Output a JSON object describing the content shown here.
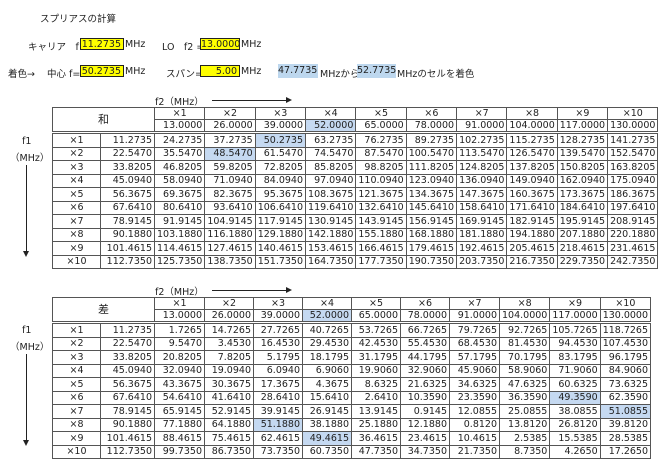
{
  "title": "スプリアスの計算",
  "carrier": {
    "label": "キャリア　f1 =",
    "value": "11.2735",
    "unit": "MHz"
  },
  "lo": {
    "label": "LO　f2 =",
    "value": "13.0000",
    "unit": "MHz"
  },
  "coloring": {
    "prefix": "着色→",
    "center_label": "中心 f=",
    "center_value": "50.2735",
    "center_unit": "MHz",
    "span_label": "スパン=",
    "span_value": "5.00",
    "span_unit": "MHz",
    "from_value": "47.7735",
    "from_text": "MHzから",
    "to_value": "52.7735",
    "to_text": "MHzのセルを着色"
  },
  "colors": {
    "input_bg": "#ffff00",
    "highlight": "#c5d9f1"
  },
  "axis": {
    "f2": "f2（MHz）",
    "f1": "f1",
    "f1_unit": "（MHz）"
  },
  "col_labels": [
    "×1",
    "×2",
    "×3",
    "×4",
    "×5",
    "×6",
    "×7",
    "×8",
    "×9",
    "×10"
  ],
  "f2_values": [
    "13.0000",
    "26.0000",
    "39.0000",
    "52.0000",
    "65.0000",
    "78.0000",
    "91.0000",
    "104.0000",
    "117.0000",
    "130.0000"
  ],
  "row_labels": [
    "×1",
    "×2",
    "×3",
    "×4",
    "×5",
    "×6",
    "×7",
    "×8",
    "×9",
    "×10"
  ],
  "f1_values": [
    "11.2735",
    "22.5470",
    "33.8205",
    "45.0940",
    "56.3675",
    "67.6410",
    "78.9145",
    "90.1880",
    "101.4615",
    "112.7350"
  ],
  "sum_table": {
    "title": "和",
    "rows": [
      [
        "24.2735",
        "37.2735",
        "50.2735",
        "63.2735",
        "76.2735",
        "89.2735",
        "102.2735",
        "115.2735",
        "128.2735",
        "141.2735"
      ],
      [
        "35.5470",
        "48.5470",
        "61.5470",
        "74.5470",
        "87.5470",
        "100.5470",
        "113.5470",
        "126.5470",
        "139.5470",
        "152.5470"
      ],
      [
        "46.8205",
        "59.8205",
        "72.8205",
        "85.8205",
        "98.8205",
        "111.8205",
        "124.8205",
        "137.8205",
        "150.8205",
        "163.8205"
      ],
      [
        "58.0940",
        "71.0940",
        "84.0940",
        "97.0940",
        "110.0940",
        "123.0940",
        "136.0940",
        "149.0940",
        "162.0940",
        "175.0940"
      ],
      [
        "69.3675",
        "82.3675",
        "95.3675",
        "108.3675",
        "121.3675",
        "134.3675",
        "147.3675",
        "160.3675",
        "173.3675",
        "186.3675"
      ],
      [
        "80.6410",
        "93.6410",
        "106.6410",
        "119.6410",
        "132.6410",
        "145.6410",
        "158.6410",
        "171.6410",
        "184.6410",
        "197.6410"
      ],
      [
        "91.9145",
        "104.9145",
        "117.9145",
        "130.9145",
        "143.9145",
        "156.9145",
        "169.9145",
        "182.9145",
        "195.9145",
        "208.9145"
      ],
      [
        "103.1880",
        "116.1880",
        "129.1880",
        "142.1880",
        "155.1880",
        "168.1880",
        "181.1880",
        "194.1880",
        "207.1880",
        "220.1880"
      ],
      [
        "114.4615",
        "127.4615",
        "140.4615",
        "153.4615",
        "166.4615",
        "179.4615",
        "192.4615",
        "205.4615",
        "218.4615",
        "231.4615"
      ],
      [
        "125.7350",
        "138.7350",
        "151.7350",
        "164.7350",
        "177.7350",
        "190.7350",
        "203.7350",
        "216.7350",
        "229.7350",
        "242.7350"
      ]
    ]
  },
  "diff_table": {
    "title": "差",
    "rows": [
      [
        "1.7265",
        "14.7265",
        "27.7265",
        "40.7265",
        "53.7265",
        "66.7265",
        "79.7265",
        "92.7265",
        "105.7265",
        "118.7265"
      ],
      [
        "9.5470",
        "3.4530",
        "16.4530",
        "29.4530",
        "42.4530",
        "55.4530",
        "68.4530",
        "81.4530",
        "94.4530",
        "107.4530"
      ],
      [
        "20.8205",
        "7.8205",
        "5.1795",
        "18.1795",
        "31.1795",
        "44.1795",
        "57.1795",
        "70.1795",
        "83.1795",
        "96.1795"
      ],
      [
        "32.0940",
        "19.0940",
        "6.0940",
        "6.9060",
        "19.9060",
        "32.9060",
        "45.9060",
        "58.9060",
        "71.9060",
        "84.9060"
      ],
      [
        "43.3675",
        "30.3675",
        "17.3675",
        "4.3675",
        "8.6325",
        "21.6325",
        "34.6325",
        "47.6325",
        "60.6325",
        "73.6325"
      ],
      [
        "54.6410",
        "41.6410",
        "28.6410",
        "15.6410",
        "2.6410",
        "10.3590",
        "23.3590",
        "36.3590",
        "49.3590",
        "62.3590"
      ],
      [
        "65.9145",
        "52.9145",
        "39.9145",
        "26.9145",
        "13.9145",
        "0.9145",
        "12.0855",
        "25.0855",
        "38.0855",
        "51.0855"
      ],
      [
        "77.1880",
        "64.1880",
        "51.1880",
        "38.1880",
        "25.1880",
        "12.1880",
        "0.8120",
        "13.8120",
        "26.8120",
        "39.8120"
      ],
      [
        "88.4615",
        "75.4615",
        "62.4615",
        "49.4615",
        "36.4615",
        "23.4615",
        "10.4615",
        "2.5385",
        "15.5385",
        "28.5385"
      ],
      [
        "99.7350",
        "86.7350",
        "73.7350",
        "60.7350",
        "47.7350",
        "34.7350",
        "21.7350",
        "8.7350",
        "4.2650",
        "17.2650"
      ]
    ]
  }
}
